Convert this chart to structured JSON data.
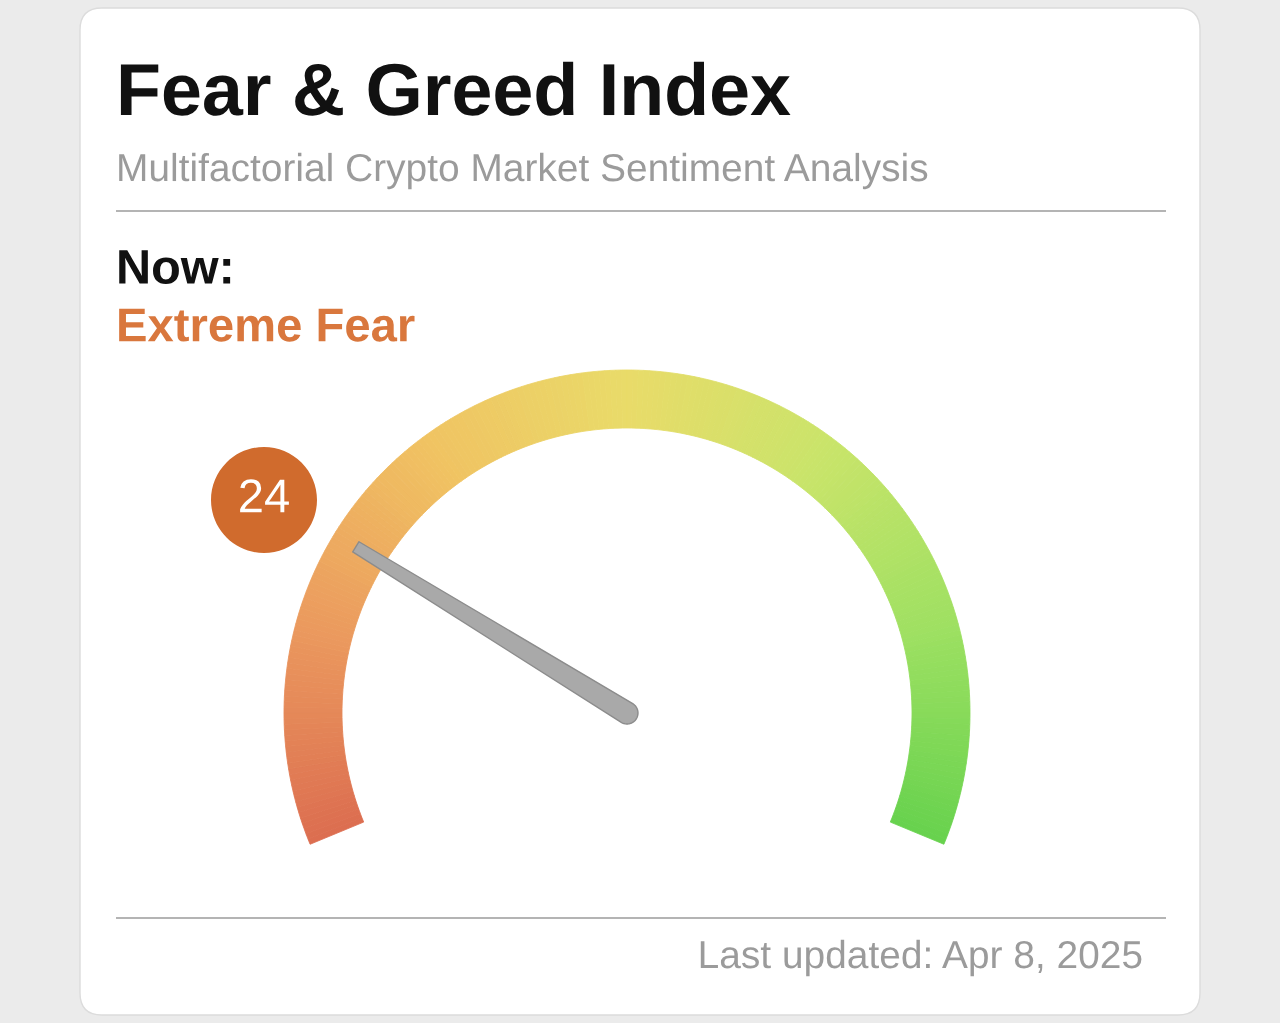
{
  "chart_data": {
    "type": "other",
    "title": "Fear & Greed Index",
    "subtitle": "Multifactorial Crypto Market Sentiment Analysis",
    "annotations": [
      "Now:",
      "Extreme Fear",
      "Last updated: Apr 8, 2025"
    ],
    "values": [
      24
    ],
    "data_labels": true
  }
}
